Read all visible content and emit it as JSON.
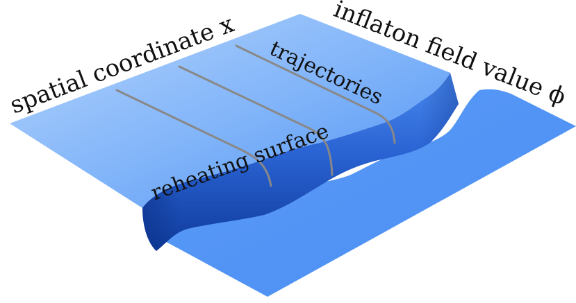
{
  "labels": {
    "x_axis": "spatial coordinate x",
    "phi_axis": "inflaton field value ϕ",
    "trajectories": "trajectories",
    "reheating_surface": "reheating surface"
  },
  "colors": {
    "surface_light": "#a9cdfb",
    "surface_mid": "#74acf8",
    "surface_dark": "#4f93f5",
    "cliff_light": "#4e8ef0",
    "cliff_mid": "#2a66d6",
    "cliff_dark": "#0e3a99",
    "trajectory": "#888888",
    "text": "#111111"
  }
}
